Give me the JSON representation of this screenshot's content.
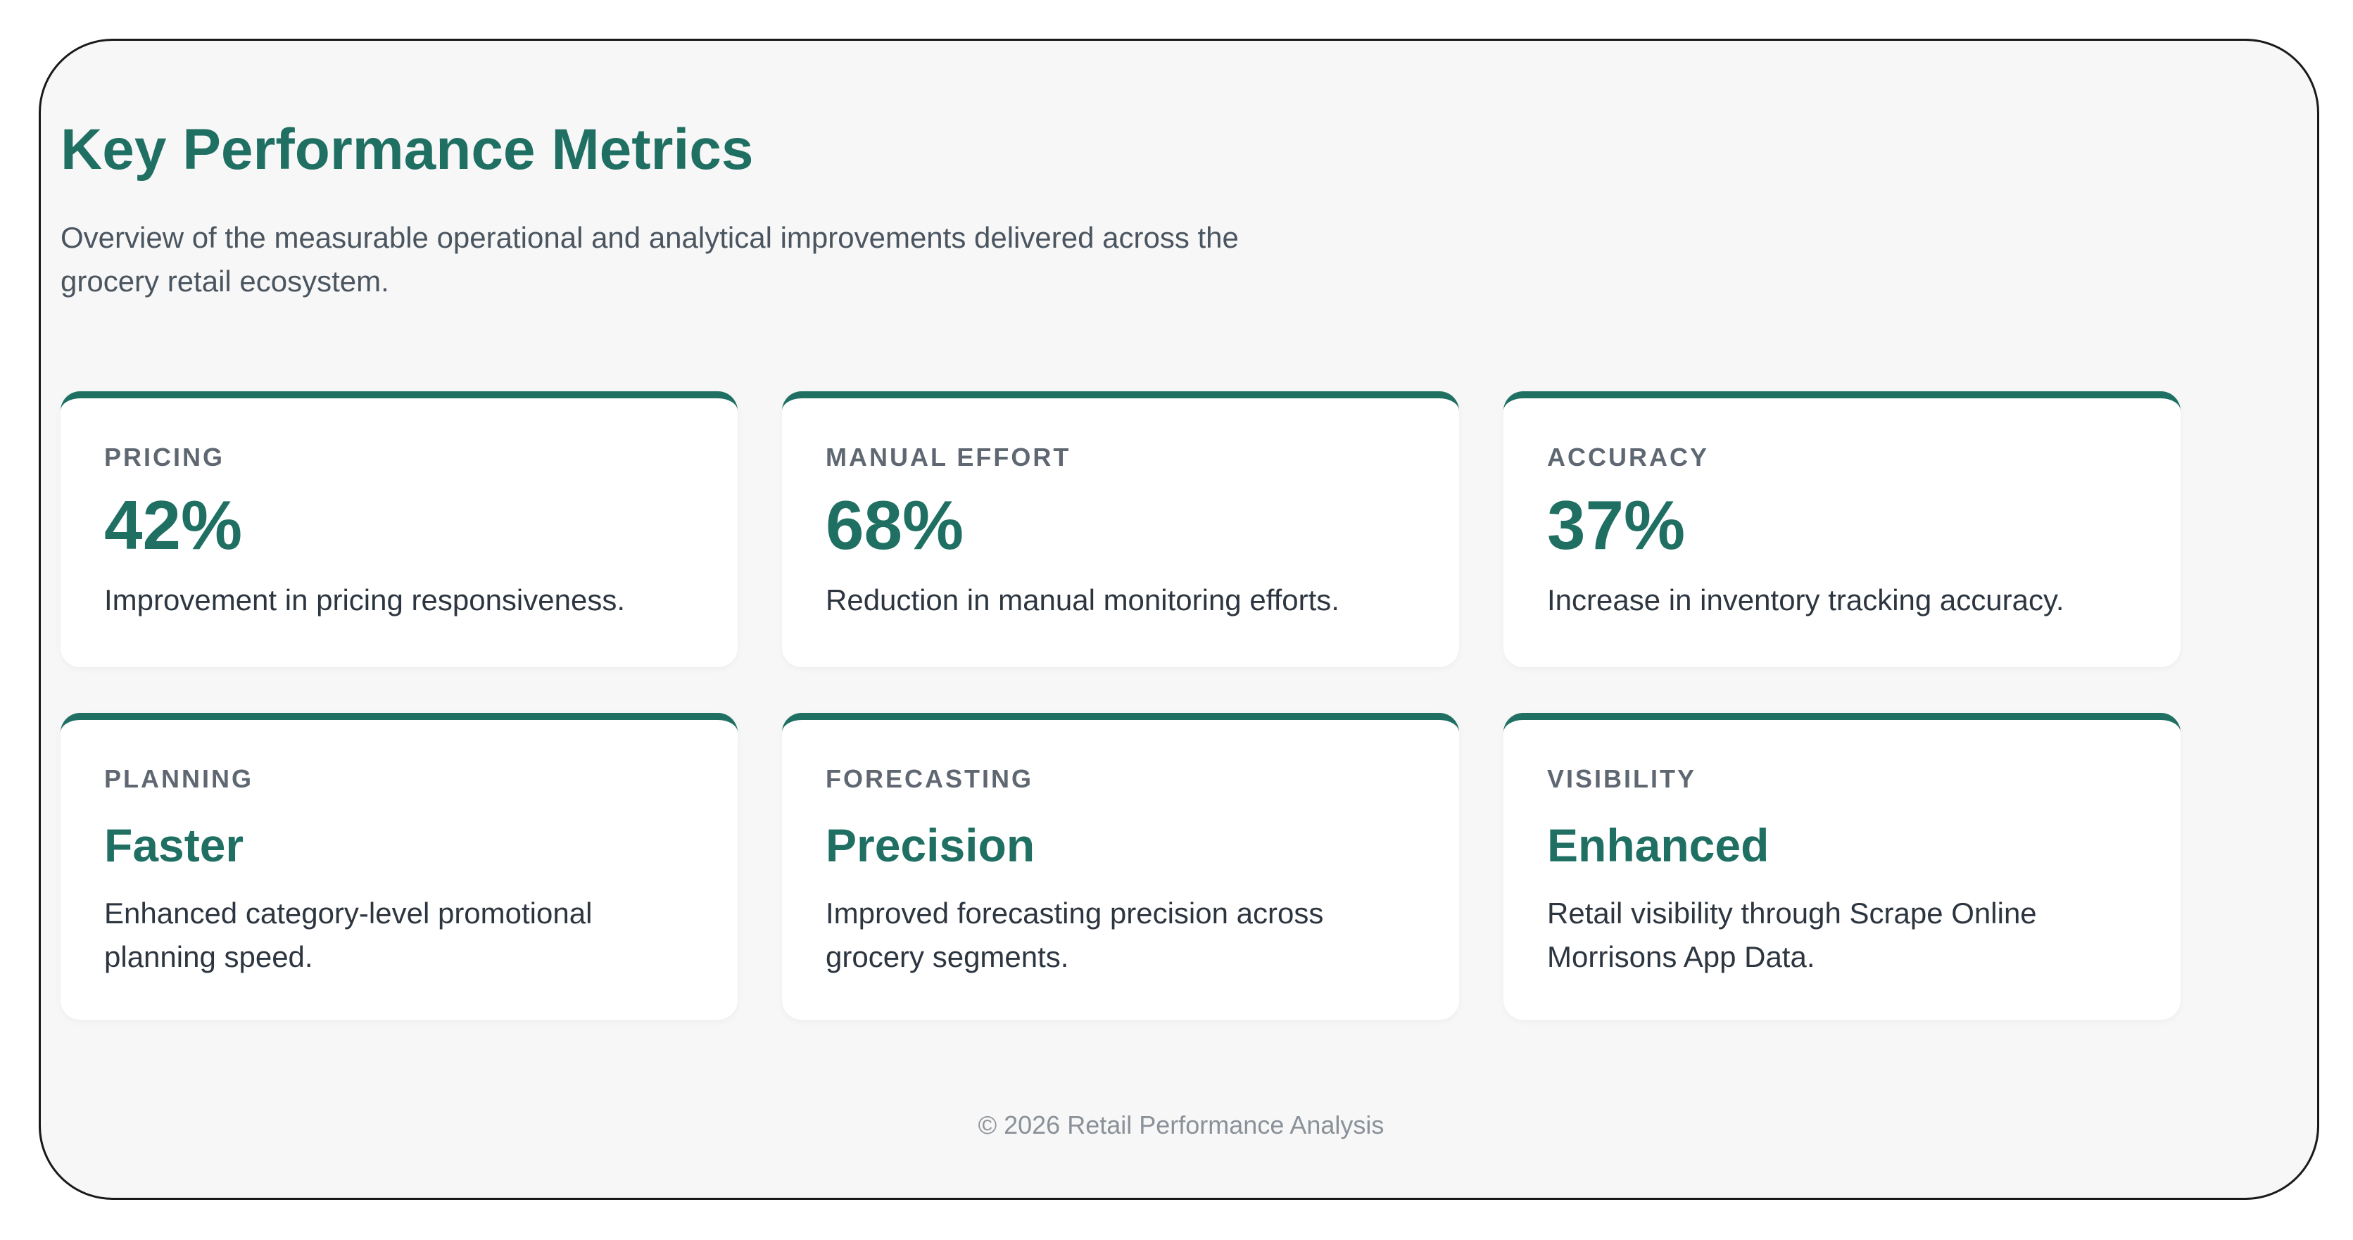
{
  "page": {
    "title": "Key Performance Metrics",
    "description": "Overview of the measurable operational and analytical improvements delivered across the grocery retail ecosystem."
  },
  "colors": {
    "accent": "#1f6f63",
    "background": "#f7f7f7",
    "card": "#ffffff",
    "label": "#5f6872",
    "text": "#2d3640",
    "footer": "#8a9198"
  },
  "metrics": [
    {
      "label": "PRICING",
      "value": "42%",
      "description": "Improvement in pricing responsiveness."
    },
    {
      "label": "MANUAL EFFORT",
      "value": "68%",
      "description": "Reduction in manual monitoring efforts."
    },
    {
      "label": "ACCURACY",
      "value": "37%",
      "description": "Increase in inventory tracking accuracy."
    },
    {
      "label": "PLANNING",
      "value": "Faster",
      "description": "Enhanced category-level promotional planning speed."
    },
    {
      "label": "FORECASTING",
      "value": "Precision",
      "description": "Improved forecasting precision across grocery segments."
    },
    {
      "label": "VISIBILITY",
      "value": "Enhanced",
      "description": "Retail visibility through Scrape Online Morrisons App Data."
    }
  ],
  "footer": {
    "text": "© 2026 Retail Performance Analysis"
  }
}
